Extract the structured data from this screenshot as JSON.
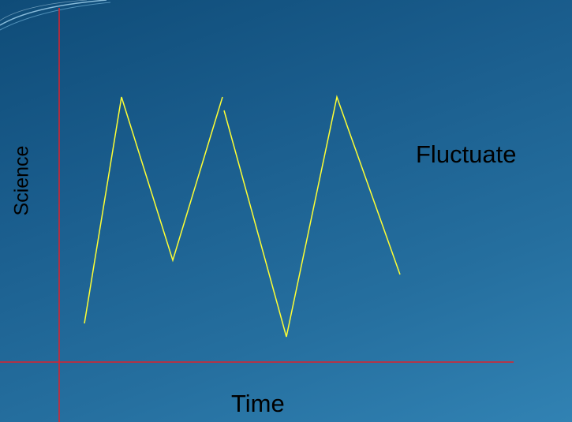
{
  "diagram": {
    "y_axis_label": "Science",
    "x_axis_label": "Time",
    "annotation": "Fluctuate",
    "colors": {
      "background_top": "#0f4c78",
      "background_bottom": "#3182b3",
      "axis": "#e0202a",
      "line": "#ffff33",
      "text": "#000000"
    }
  }
}
